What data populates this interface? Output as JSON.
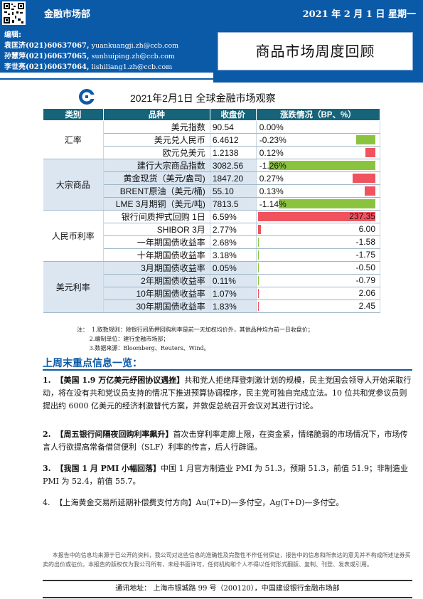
{
  "header": {
    "dept": "金融市场部",
    "date": "2021 年 2 月 1 日  星期一",
    "editors_label": "编辑:",
    "editors": [
      {
        "name": "袁匡济",
        "phone": "(021)60637067,",
        "email": "yuankuangji.zh@ccb.com"
      },
      {
        "name": "孙慧萍",
        "phone": "(021)60637065,",
        "email": "sunhuiping.zh@ccb.com"
      },
      {
        "name": "李世亮",
        "phone": "(021)60637064,",
        "email": "lishiliang1.zh@ccb.com"
      }
    ],
    "report_title": "商品市场周度回顾"
  },
  "table": {
    "title": "2021年2月1日  全球金融市场观察",
    "columns": [
      "类别",
      "品种",
      "收盘价",
      "涨跌情况（BP、%）"
    ],
    "groups": [
      {
        "category": "汇率",
        "rows": [
          {
            "name": "美元指数",
            "close": "90.54",
            "change": "0.00%",
            "value": 0.0
          },
          {
            "name": "美元兑人民币",
            "close": "6.4612",
            "change": "-0.23%",
            "value": -0.23
          },
          {
            "name": "欧元兑美元",
            "close": "1.2138",
            "change": "0.12%",
            "value": 0.12
          }
        ]
      },
      {
        "category": "大宗商品",
        "rows": [
          {
            "name": "建行大宗商品指数",
            "close": "3082.56",
            "change": "-1.26%",
            "value": -1.26
          },
          {
            "name": "黄金现货（美元/盎司)",
            "close": "1847.20",
            "change": "0.27%",
            "value": 0.27
          },
          {
            "name": "BRENT原油（美元/桶)",
            "close": "55.10",
            "change": "0.13%",
            "value": 0.13
          },
          {
            "name": "LME 3月期铜（美元/吨)",
            "close": "7813.5",
            "change": "-1.14%",
            "value": -1.14
          }
        ]
      },
      {
        "category": "人民币利率",
        "rows": [
          {
            "name": "银行间质押式回购 1日",
            "close": "6.59%",
            "change": "237.35",
            "value": 237.35
          },
          {
            "name": "SHIBOR 3月",
            "close": "2.77%",
            "change": "6.00",
            "value": 6.0
          },
          {
            "name": "一年期国债收益率",
            "close": "2.68%",
            "change": "-1.58",
            "value": -1.58
          },
          {
            "name": "十年期国债收益率",
            "close": "3.18%",
            "change": "-1.75",
            "value": -1.75
          }
        ]
      },
      {
        "category": "美元利率",
        "rows": [
          {
            "name": "3月期国债收益率",
            "close": "0.05%",
            "change": "-0.50",
            "value": -0.5
          },
          {
            "name": "2年期国债收益率",
            "close": "0.11%",
            "change": "-0.79",
            "value": -0.79
          },
          {
            "name": "10年期国债收益率",
            "close": "1.07%",
            "change": "2.06",
            "value": 2.06
          },
          {
            "name": "30年期国债收益率",
            "close": "1.83%",
            "change": "2.45",
            "value": 2.45
          }
        ]
      }
    ],
    "notes": [
      "注：  1.取数规则：除银行间质押回购利率是前一天加权均价外，其他品种均为前一日收盘价；",
      "       2.编制单位：建行金融市场部；",
      "       3.数据来源：Bloomberg、Reuters、Wind。"
    ]
  },
  "section": {
    "heading": "上周末重点信息一览：",
    "items": [
      {
        "num": "1.",
        "head": "【美国 1.9 万亿美元纾困协议遇挫】",
        "body": "共和党人拒绝拜登刺激计划的规模，民主党国会领导人开始采取行动，将在没有共和党议员支持的情况下推进预算协调程序，民主党可独自完成立法。10 位共和党参议员则提出约 6000 亿美元的经济刺激替代方案，并敦促总统召开会议对其进行讨论。"
      },
      {
        "num": "2.",
        "head": "【周五银行间隔夜回购利率飙升】",
        "body": "首次击穿利率走廊上限，在资金紧，情绪脆弱的市场情况下，市场传言人行欲提高常备借贷便利（SLF）利率的传言，后人行辟谣。"
      },
      {
        "num": "3.",
        "head": "【我国 1 月 PMI 小幅回落】",
        "body": "中国 1 月官方制造业 PMI 为 51.3，预期 51.3，前值 51.9；非制造业 PMI 为 52.4，前值 55.7。"
      },
      {
        "num": "4.",
        "head": "【上海黄金交易所延期补偿费支付方向】",
        "body": "Au(T+D)—多付空，Ag(T+D)—多付空。"
      }
    ]
  },
  "disclaimer": "本报告中的信息均来源于已公开的资料，我公司对这些信息的准确性及完整性不作任何保证，报告中的信息和所表达的意见并不构成所述证券买卖的出价或征价。本报告的版权仅为我公司所有，未经书面许可，任何机构和个人不得以任何形式翻版、复制、刊登、发表或引用。",
  "footer": "通讯地址：  上海市银城路 99 号（200120），中国建设银行金融市场部",
  "colors": {
    "brand_blue": "#0b5aa8",
    "table_header": "#17647a",
    "up_red": "#f0535e",
    "down_green": "#8ac43f"
  }
}
